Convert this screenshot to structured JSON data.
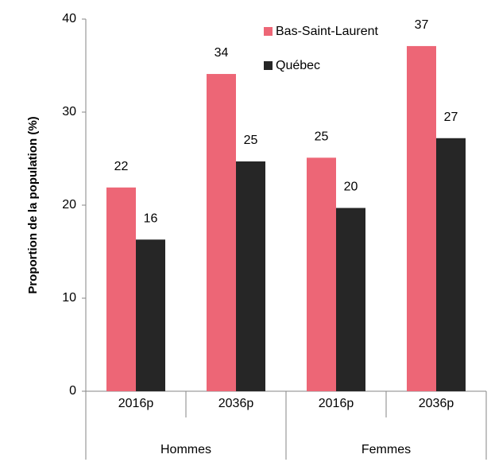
{
  "chart_data": {
    "type": "bar",
    "y_axis_label": "Proportion de la population (%)",
    "categories": [
      "2016p",
      "2036p",
      "2016p",
      "2036p"
    ],
    "groups": [
      "Hommes",
      "Femmes"
    ],
    "series": [
      {
        "name": "Bas-Saint-Laurent",
        "color": "#ed6676",
        "values": [
          21.9,
          34.1,
          25.1,
          37.1
        ],
        "value_labels": [
          "22",
          "34",
          "25",
          "37"
        ]
      },
      {
        "name": "Québec",
        "color": "#262626",
        "values": [
          16.3,
          24.7,
          19.7,
          27.2
        ],
        "value_labels": [
          "16",
          "25",
          "20",
          "27"
        ]
      }
    ],
    "ylim": [
      0,
      40
    ],
    "yticks": [
      0,
      10,
      20,
      30,
      40
    ],
    "grid": false
  }
}
